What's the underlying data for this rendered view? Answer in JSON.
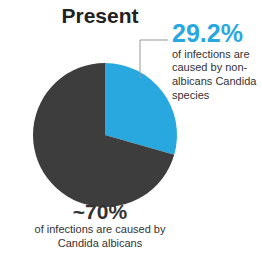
{
  "chart_data": {
    "type": "pie",
    "title": "Present",
    "categories": [
      "of infections are caused by non-albicans Candida species",
      "of infections are caused by Candida albicans"
    ],
    "values": [
      29.2,
      70
    ],
    "value_labels": [
      "29.2%",
      "~70%"
    ],
    "colors": [
      "#29a8e0",
      "#3d3d3d"
    ],
    "data_labels": true
  }
}
